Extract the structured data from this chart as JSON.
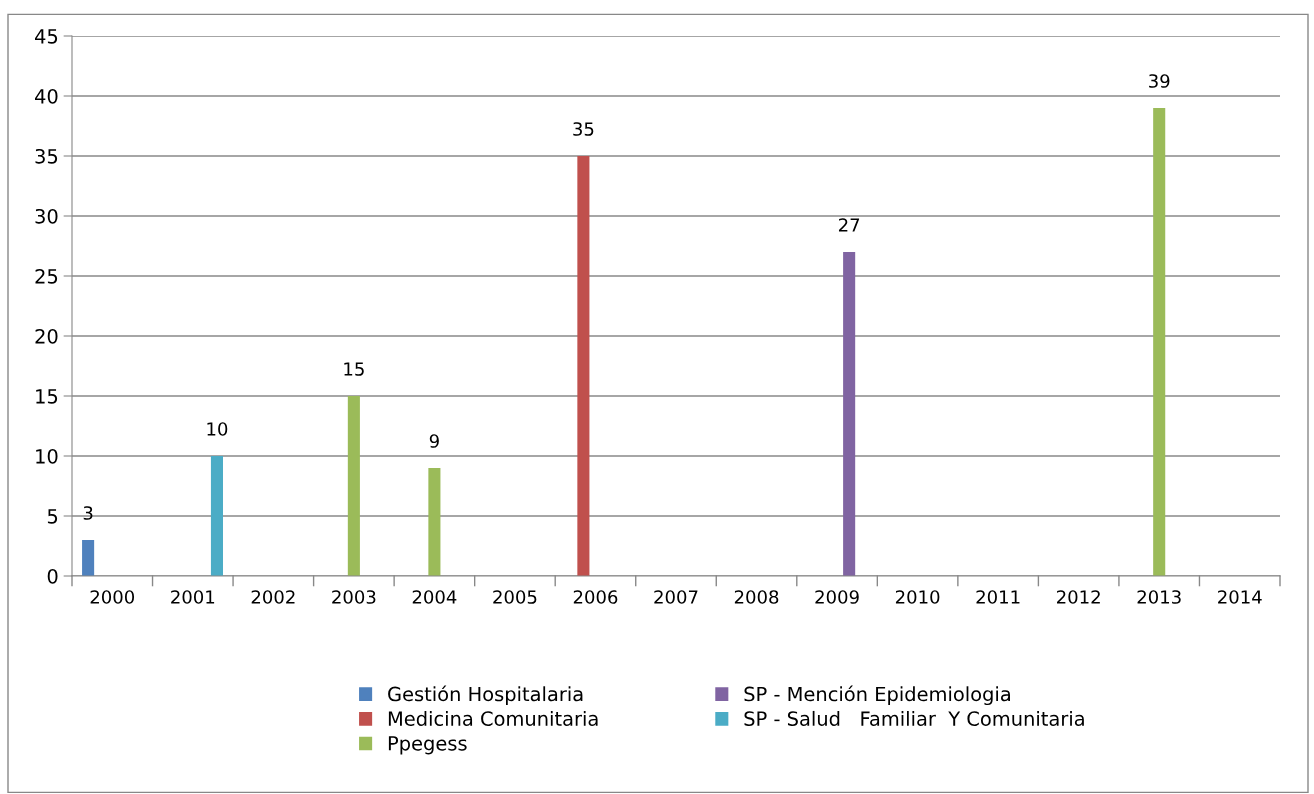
{
  "chart_data": {
    "type": "bar",
    "categories": [
      "2000",
      "2001",
      "2002",
      "2003",
      "2004",
      "2005",
      "2006",
      "2007",
      "2008",
      "2009",
      "2010",
      "2011",
      "2012",
      "2013",
      "2014"
    ],
    "series": [
      {
        "name": "Gestión Hospitalaria",
        "color": "#4f81bd",
        "values": [
          3,
          null,
          null,
          null,
          null,
          null,
          null,
          null,
          null,
          null,
          null,
          null,
          null,
          null,
          null
        ]
      },
      {
        "name": "Medicina Comunitaria",
        "color": "#c0504d",
        "values": [
          null,
          null,
          null,
          null,
          null,
          null,
          35,
          null,
          null,
          null,
          null,
          null,
          null,
          null,
          null
        ]
      },
      {
        "name": "Ppegess",
        "color": "#9bbb59",
        "values": [
          null,
          null,
          null,
          15,
          9,
          null,
          null,
          null,
          null,
          null,
          null,
          null,
          null,
          39,
          null
        ]
      },
      {
        "name": "SP - Mención Epidemiologia",
        "color": "#8064a2",
        "values": [
          null,
          null,
          null,
          null,
          null,
          null,
          null,
          null,
          null,
          27,
          null,
          null,
          null,
          null,
          null
        ]
      },
      {
        "name": "SP - Salud   Familiar  Y Comunitaria",
        "color": "#4bacc6",
        "values": [
          null,
          10,
          null,
          null,
          null,
          null,
          null,
          null,
          null,
          null,
          null,
          null,
          null,
          null,
          null
        ]
      }
    ],
    "ylim": [
      0,
      45
    ],
    "yticks": [
      0,
      5,
      10,
      15,
      20,
      25,
      30,
      35,
      40,
      45
    ],
    "grid": "y",
    "legend": "bottom",
    "data_labels": true
  }
}
